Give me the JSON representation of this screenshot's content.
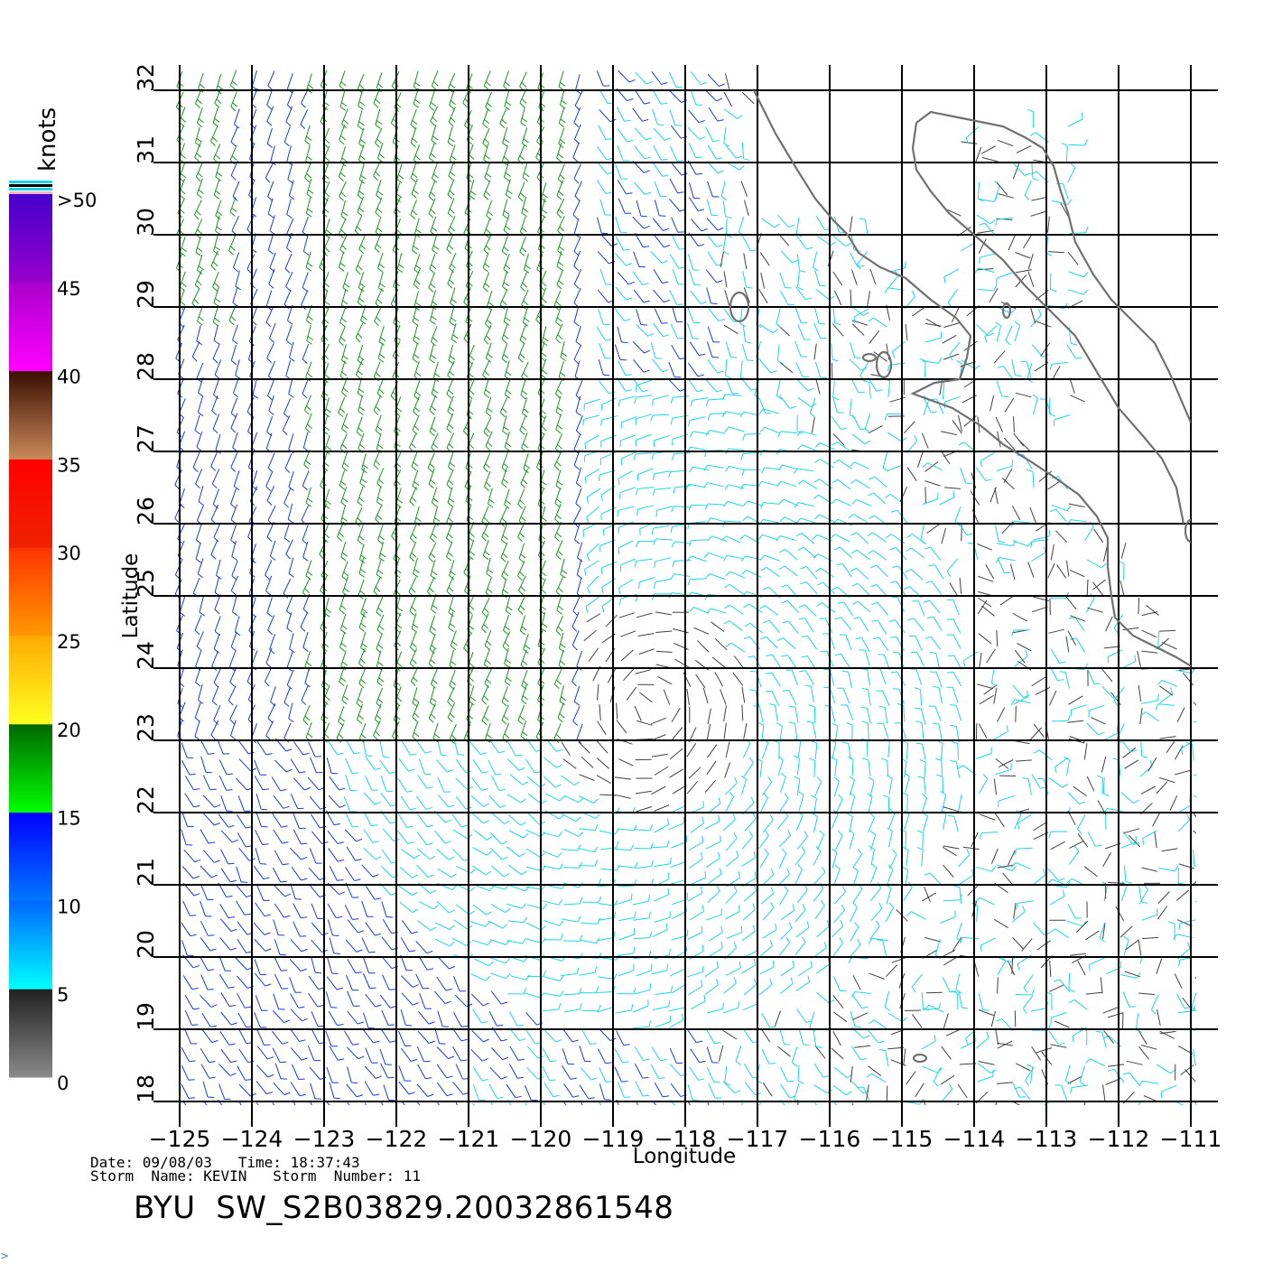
{
  "map": {
    "type": "wind-barb-map",
    "region": "Eastern North Pacific off Baja California",
    "lon_range": [
      -125,
      -111
    ],
    "lat_range": [
      18,
      32
    ],
    "xlabel": "Longitude",
    "ylabel": "Latitude",
    "lon_ticks": [
      -125,
      -124,
      -123,
      -122,
      -121,
      -120,
      -119,
      -118,
      -117,
      -116,
      -115,
      -114,
      -113,
      -112,
      -111
    ],
    "lon_tick_labels": [
      "−125",
      "−124",
      "−123",
      "−122",
      "−121",
      "−120",
      "−119",
      "−118",
      "−117",
      "−116",
      "−115",
      "−114",
      "−113",
      "−112",
      "−111"
    ],
    "lat_ticks": [
      18,
      19,
      20,
      21,
      22,
      23,
      24,
      25,
      26,
      27,
      28,
      29,
      30,
      31,
      32
    ],
    "lat_tick_labels": [
      "18",
      "19",
      "20",
      "21",
      "22",
      "23",
      "24",
      "25",
      "26",
      "27",
      "28",
      "29",
      "30",
      "31",
      "32"
    ],
    "grid": true,
    "coastline_color": "#707070",
    "storm_center": {
      "lon": -118.5,
      "lat": 23.5
    }
  },
  "legend": {
    "unit": "knots",
    "placement": "left",
    "labels": [
      ">50",
      "45",
      "40",
      "35",
      "30",
      "25",
      "20",
      "15",
      "10",
      "5",
      "0"
    ],
    "bands": [
      {
        "from": 0,
        "to": 5,
        "top": "#202020",
        "bottom": "#8a8a8a"
      },
      {
        "from": 5,
        "to": 10,
        "top": "#0066ff",
        "bottom": "#00ffff"
      },
      {
        "from": 10,
        "to": 15,
        "top": "#0000ff",
        "bottom": "#0077ff"
      },
      {
        "from": 15,
        "to": 20,
        "top": "#006600",
        "bottom": "#00ff00"
      },
      {
        "from": 20,
        "to": 25,
        "top": "#ffaa00",
        "bottom": "#ffff22"
      },
      {
        "from": 25,
        "to": 30,
        "top": "#ff3300",
        "bottom": "#ff9900"
      },
      {
        "from": 30,
        "to": 35,
        "top": "#ff0000",
        "bottom": "#ee2200"
      },
      {
        "from": 35,
        "to": 40,
        "top": "#3a0d00",
        "bottom": "#c98a5a"
      },
      {
        "from": 40,
        "to": 45,
        "top": "#aa00cc",
        "bottom": "#ff00ff"
      },
      {
        "from": 45,
        "to": 50,
        "top": "#4400cc",
        "bottom": "#9900cc"
      }
    ],
    "speed_colors": {
      "calm": "#404040",
      "light": "#19d6e6",
      "moderate": "#1a3ad6",
      "fresh": "#15961f"
    }
  },
  "footer": {
    "line1": "Date: 09/08/03   Time: 18:37:43",
    "line2": "Storm  Name: KEVIN   Storm  Number: 11",
    "product_id": "BYU  SW_S2B03829.20032861548"
  }
}
